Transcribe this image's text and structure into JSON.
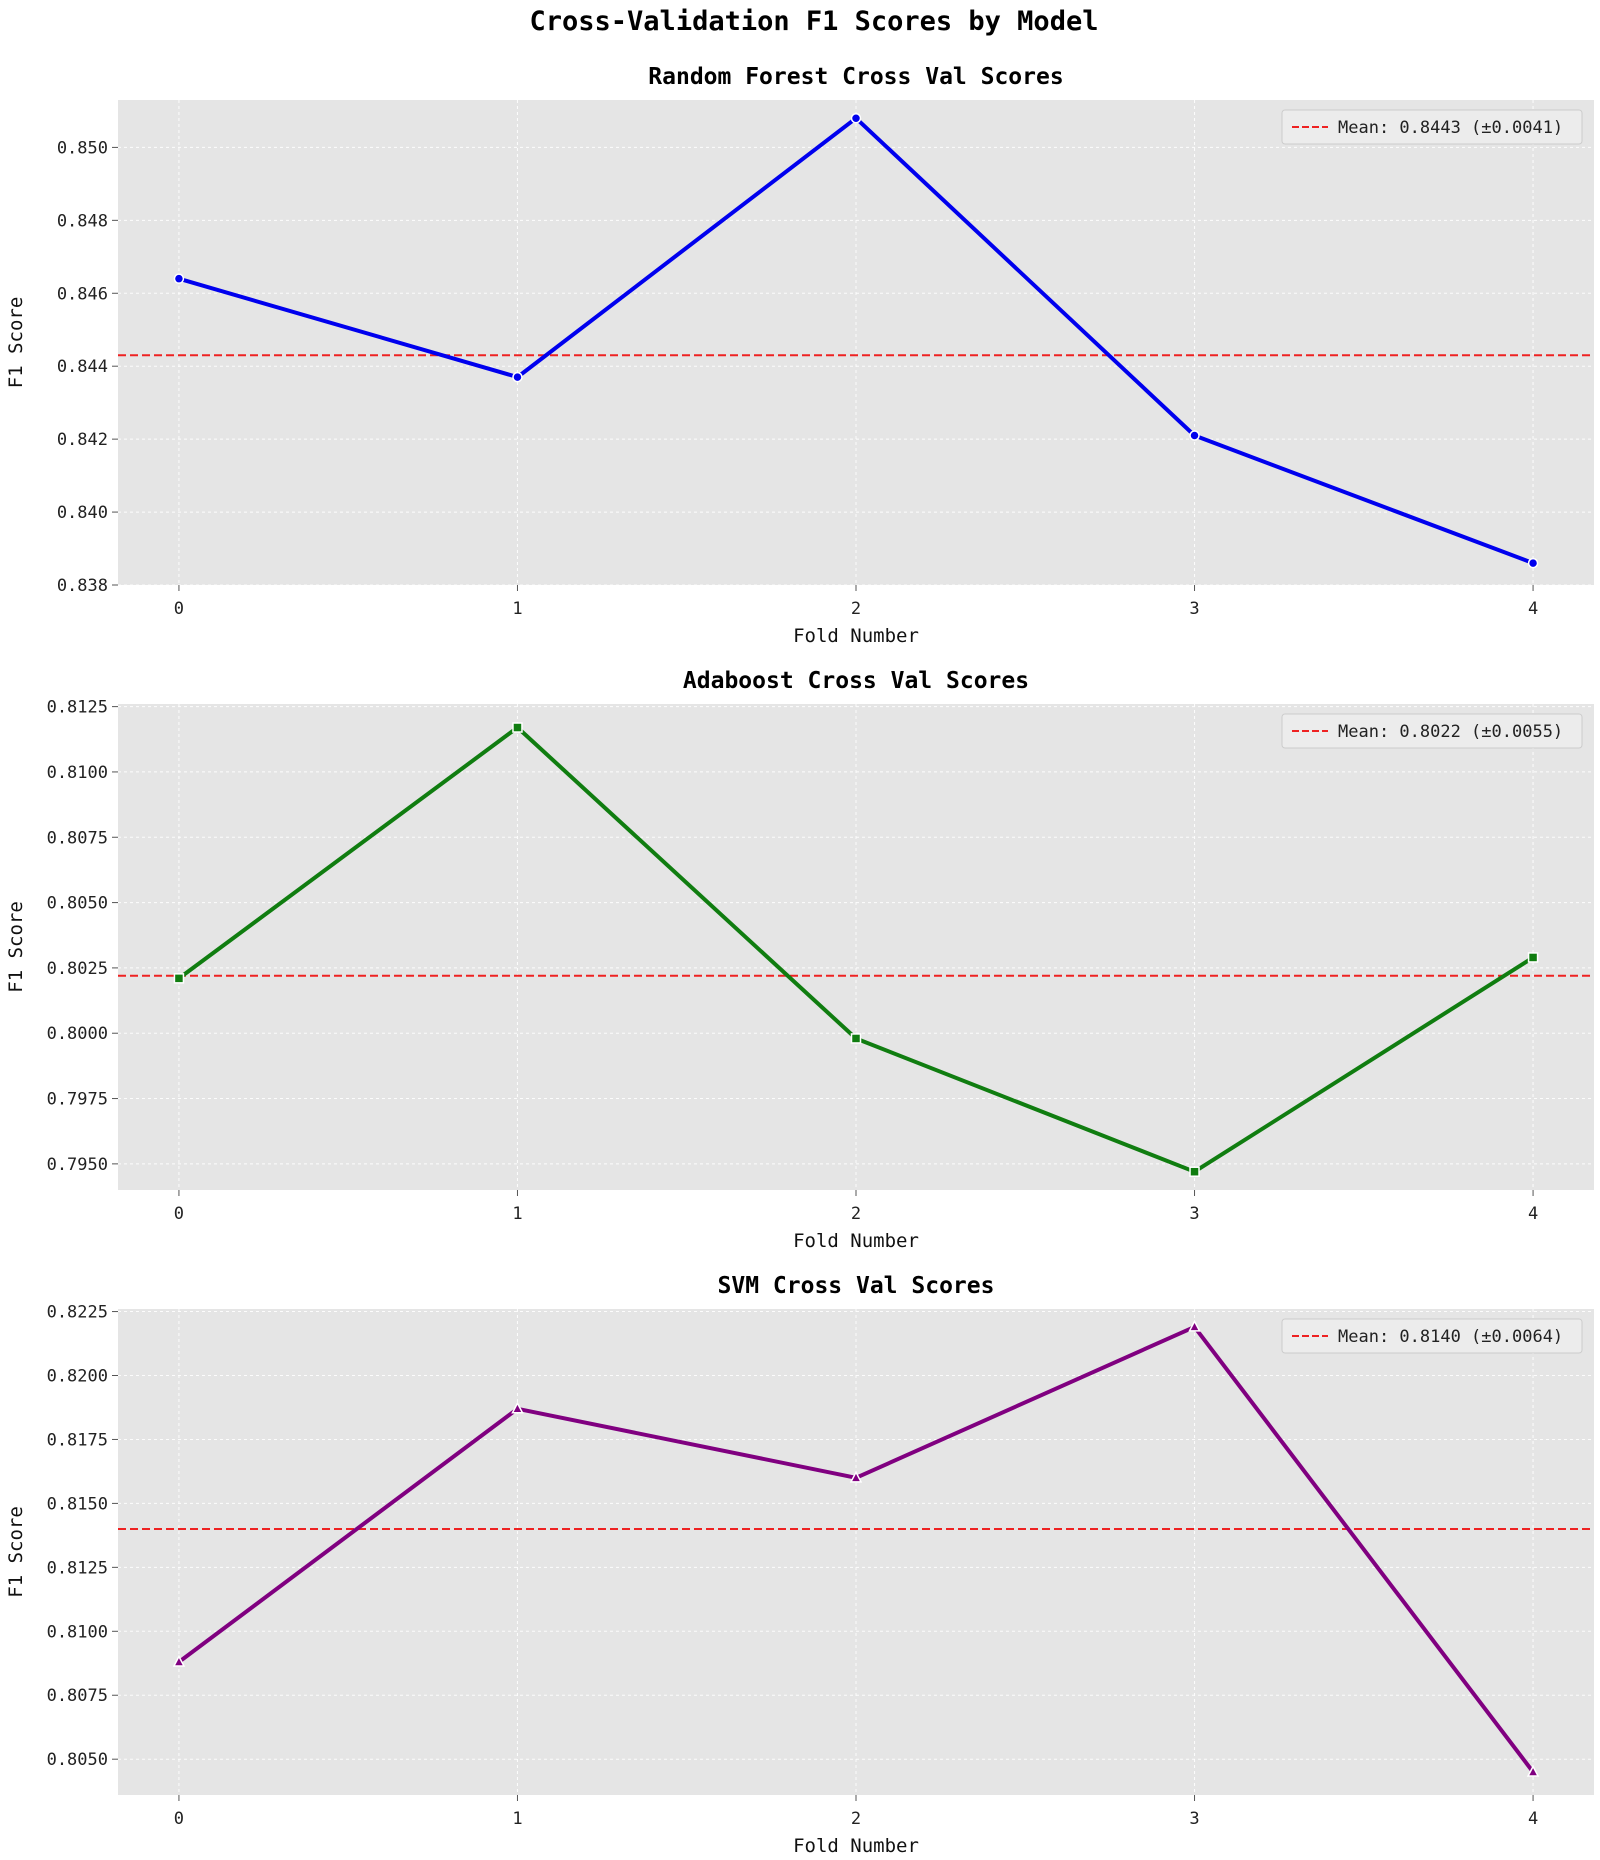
{
  "figure": {
    "title": "Cross-Validation F1 Scores by Model"
  },
  "chart_data": [
    {
      "type": "line",
      "title": "Random Forest Cross Val Scores",
      "xlabel": "Fold Number",
      "ylabel": "F1 Score",
      "x": [
        0,
        1,
        2,
        3,
        4
      ],
      "values": [
        0.8464,
        0.8437,
        0.8508,
        0.8421,
        0.8386
      ],
      "color": "#0000ee",
      "marker": "circle",
      "mean": 0.8443,
      "mean_color": "#ee2222",
      "legend_label": "Mean: 0.8443 (±0.0041)",
      "legend_position": "top-right",
      "xlim": [
        -0.18,
        4.18
      ],
      "ylim": [
        0.838,
        0.8513
      ],
      "yticks": [
        0.838,
        0.84,
        0.842,
        0.844,
        0.846,
        0.848,
        0.85
      ],
      "ytick_labels": [
        "0.838",
        "0.840",
        "0.842",
        "0.844",
        "0.846",
        "0.848",
        "0.850"
      ],
      "xticks": [
        0,
        1,
        2,
        3,
        4
      ],
      "xtick_labels": [
        "0",
        "1",
        "2",
        "3",
        "4"
      ],
      "grid": true
    },
    {
      "type": "line",
      "title": "Adaboost Cross Val Scores",
      "xlabel": "Fold Number",
      "ylabel": "F1 Score",
      "x": [
        0,
        1,
        2,
        3,
        4
      ],
      "values": [
        0.8021,
        0.8117,
        0.7998,
        0.7947,
        0.8029
      ],
      "color": "#107d10",
      "marker": "square",
      "mean": 0.8022,
      "mean_color": "#ee2222",
      "legend_label": "Mean: 0.8022 (±0.0055)",
      "legend_position": "top-right",
      "xlim": [
        -0.18,
        4.18
      ],
      "ylim": [
        0.794,
        0.8126
      ],
      "yticks": [
        0.795,
        0.7975,
        0.8,
        0.8025,
        0.805,
        0.8075,
        0.81,
        0.8125
      ],
      "ytick_labels": [
        "0.7950",
        "0.7975",
        "0.8000",
        "0.8025",
        "0.8050",
        "0.8075",
        "0.8100",
        "0.8125"
      ],
      "xticks": [
        0,
        1,
        2,
        3,
        4
      ],
      "xtick_labels": [
        "0",
        "1",
        "2",
        "3",
        "4"
      ],
      "grid": true
    },
    {
      "type": "line",
      "title": "SVM Cross Val Scores",
      "xlabel": "Fold Number",
      "ylabel": "F1 Score",
      "x": [
        0,
        1,
        2,
        3,
        4
      ],
      "values": [
        0.8088,
        0.8187,
        0.816,
        0.8219,
        0.8045
      ],
      "color": "#800080",
      "marker": "triangle",
      "mean": 0.814,
      "mean_color": "#ee2222",
      "legend_label": "Mean: 0.8140 (±0.0064)",
      "legend_position": "top-right",
      "xlim": [
        -0.18,
        4.18
      ],
      "ylim": [
        0.8036,
        0.8226
      ],
      "yticks": [
        0.805,
        0.8075,
        0.81,
        0.8125,
        0.815,
        0.8175,
        0.82,
        0.8225
      ],
      "ytick_labels": [
        "0.8050",
        "0.8075",
        "0.8100",
        "0.8125",
        "0.8150",
        "0.8175",
        "0.8200",
        "0.8225"
      ],
      "xticks": [
        0,
        1,
        2,
        3,
        4
      ],
      "xtick_labels": [
        "0",
        "1",
        "2",
        "3",
        "4"
      ],
      "grid": true
    }
  ]
}
